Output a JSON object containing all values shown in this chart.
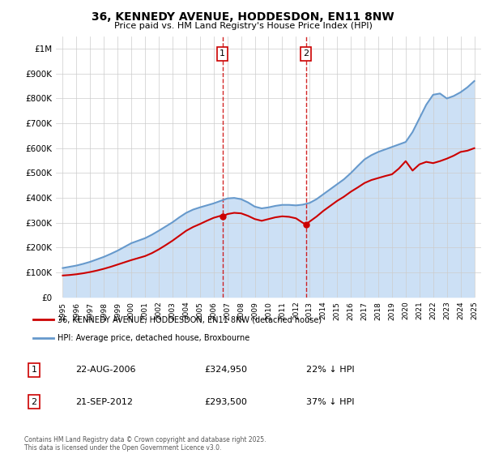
{
  "title": "36, KENNEDY AVENUE, HODDESDON, EN11 8NW",
  "subtitle": "Price paid vs. HM Land Registry's House Price Index (HPI)",
  "ylabel_ticks": [
    "£0",
    "£100K",
    "£200K",
    "£300K",
    "£400K",
    "£500K",
    "£600K",
    "£700K",
    "£800K",
    "£900K",
    "£1M"
  ],
  "ytick_values": [
    0,
    100000,
    200000,
    300000,
    400000,
    500000,
    600000,
    700000,
    800000,
    900000,
    1000000
  ],
  "ylim": [
    0,
    1050000
  ],
  "xlim_start": 1994.5,
  "xlim_end": 2025.5,
  "xtick_years": [
    1995,
    1996,
    1997,
    1998,
    1999,
    2000,
    2001,
    2002,
    2003,
    2004,
    2005,
    2006,
    2007,
    2008,
    2009,
    2010,
    2011,
    2012,
    2013,
    2014,
    2015,
    2016,
    2017,
    2018,
    2019,
    2020,
    2021,
    2022,
    2023,
    2024,
    2025
  ],
  "sale1_x": 2006.644,
  "sale1_y": 324950,
  "sale1_label": "1",
  "sale2_x": 2012.722,
  "sale2_y": 293500,
  "sale2_label": "2",
  "red_color": "#cc0000",
  "blue_color": "#6699cc",
  "blue_fill_color": "#cce0f5",
  "grid_color": "#cccccc",
  "background_color": "#ffffff",
  "legend_label_red": "36, KENNEDY AVENUE, HODDESDON, EN11 8NW (detached house)",
  "legend_label_blue": "HPI: Average price, detached house, Broxbourne",
  "table_row1": [
    "1",
    "22-AUG-2006",
    "£324,950",
    "22% ↓ HPI"
  ],
  "table_row2": [
    "2",
    "21-SEP-2012",
    "£293,500",
    "37% ↓ HPI"
  ],
  "footnote": "Contains HM Land Registry data © Crown copyright and database right 2025.\nThis data is licensed under the Open Government Licence v3.0.",
  "hpi_years": [
    1995.0,
    1995.5,
    1996.0,
    1996.5,
    1997.0,
    1997.5,
    1998.0,
    1998.5,
    1999.0,
    1999.5,
    2000.0,
    2000.5,
    2001.0,
    2001.5,
    2002.0,
    2002.5,
    2003.0,
    2003.5,
    2004.0,
    2004.5,
    2005.0,
    2005.5,
    2006.0,
    2006.5,
    2007.0,
    2007.5,
    2008.0,
    2008.5,
    2009.0,
    2009.5,
    2010.0,
    2010.5,
    2011.0,
    2011.5,
    2012.0,
    2012.5,
    2013.0,
    2013.5,
    2014.0,
    2014.5,
    2015.0,
    2015.5,
    2016.0,
    2016.5,
    2017.0,
    2017.5,
    2018.0,
    2018.5,
    2019.0,
    2019.5,
    2020.0,
    2020.5,
    2021.0,
    2021.5,
    2022.0,
    2022.5,
    2023.0,
    2023.5,
    2024.0,
    2024.5,
    2025.0
  ],
  "hpi_values": [
    118000,
    123000,
    128000,
    135000,
    143000,
    153000,
    163000,
    175000,
    188000,
    203000,
    218000,
    228000,
    238000,
    252000,
    268000,
    285000,
    302000,
    322000,
    340000,
    353000,
    362000,
    370000,
    378000,
    388000,
    398000,
    400000,
    395000,
    382000,
    365000,
    358000,
    362000,
    368000,
    372000,
    372000,
    370000,
    373000,
    380000,
    395000,
    415000,
    435000,
    455000,
    475000,
    500000,
    528000,
    555000,
    572000,
    585000,
    595000,
    605000,
    615000,
    625000,
    665000,
    720000,
    775000,
    815000,
    820000,
    800000,
    810000,
    825000,
    845000,
    870000
  ],
  "red_years": [
    1995.0,
    1995.5,
    1996.0,
    1996.5,
    1997.0,
    1997.5,
    1998.0,
    1998.5,
    1999.0,
    1999.5,
    2000.0,
    2000.5,
    2001.0,
    2001.5,
    2002.0,
    2002.5,
    2003.0,
    2003.5,
    2004.0,
    2004.5,
    2005.0,
    2005.5,
    2006.0,
    2006.5,
    2006.644,
    2007.0,
    2007.5,
    2008.0,
    2008.5,
    2009.0,
    2009.5,
    2010.0,
    2010.5,
    2011.0,
    2011.5,
    2012.0,
    2012.5,
    2012.722,
    2013.0,
    2013.5,
    2014.0,
    2014.5,
    2015.0,
    2015.5,
    2016.0,
    2016.5,
    2017.0,
    2017.5,
    2018.0,
    2018.5,
    2019.0,
    2019.5,
    2020.0,
    2020.5,
    2021.0,
    2021.5,
    2022.0,
    2022.5,
    2023.0,
    2023.5,
    2024.0,
    2024.5,
    2025.0
  ],
  "red_values": [
    88000,
    90000,
    93000,
    97000,
    102000,
    108000,
    115000,
    123000,
    132000,
    141000,
    150000,
    158000,
    166000,
    178000,
    193000,
    210000,
    228000,
    248000,
    268000,
    283000,
    295000,
    308000,
    320000,
    328000,
    324950,
    335000,
    340000,
    338000,
    328000,
    315000,
    308000,
    315000,
    322000,
    326000,
    324000,
    318000,
    300000,
    293500,
    305000,
    325000,
    348000,
    368000,
    388000,
    405000,
    425000,
    442000,
    460000,
    472000,
    480000,
    488000,
    495000,
    518000,
    548000,
    510000,
    535000,
    545000,
    540000,
    548000,
    558000,
    570000,
    585000,
    590000,
    600000
  ]
}
